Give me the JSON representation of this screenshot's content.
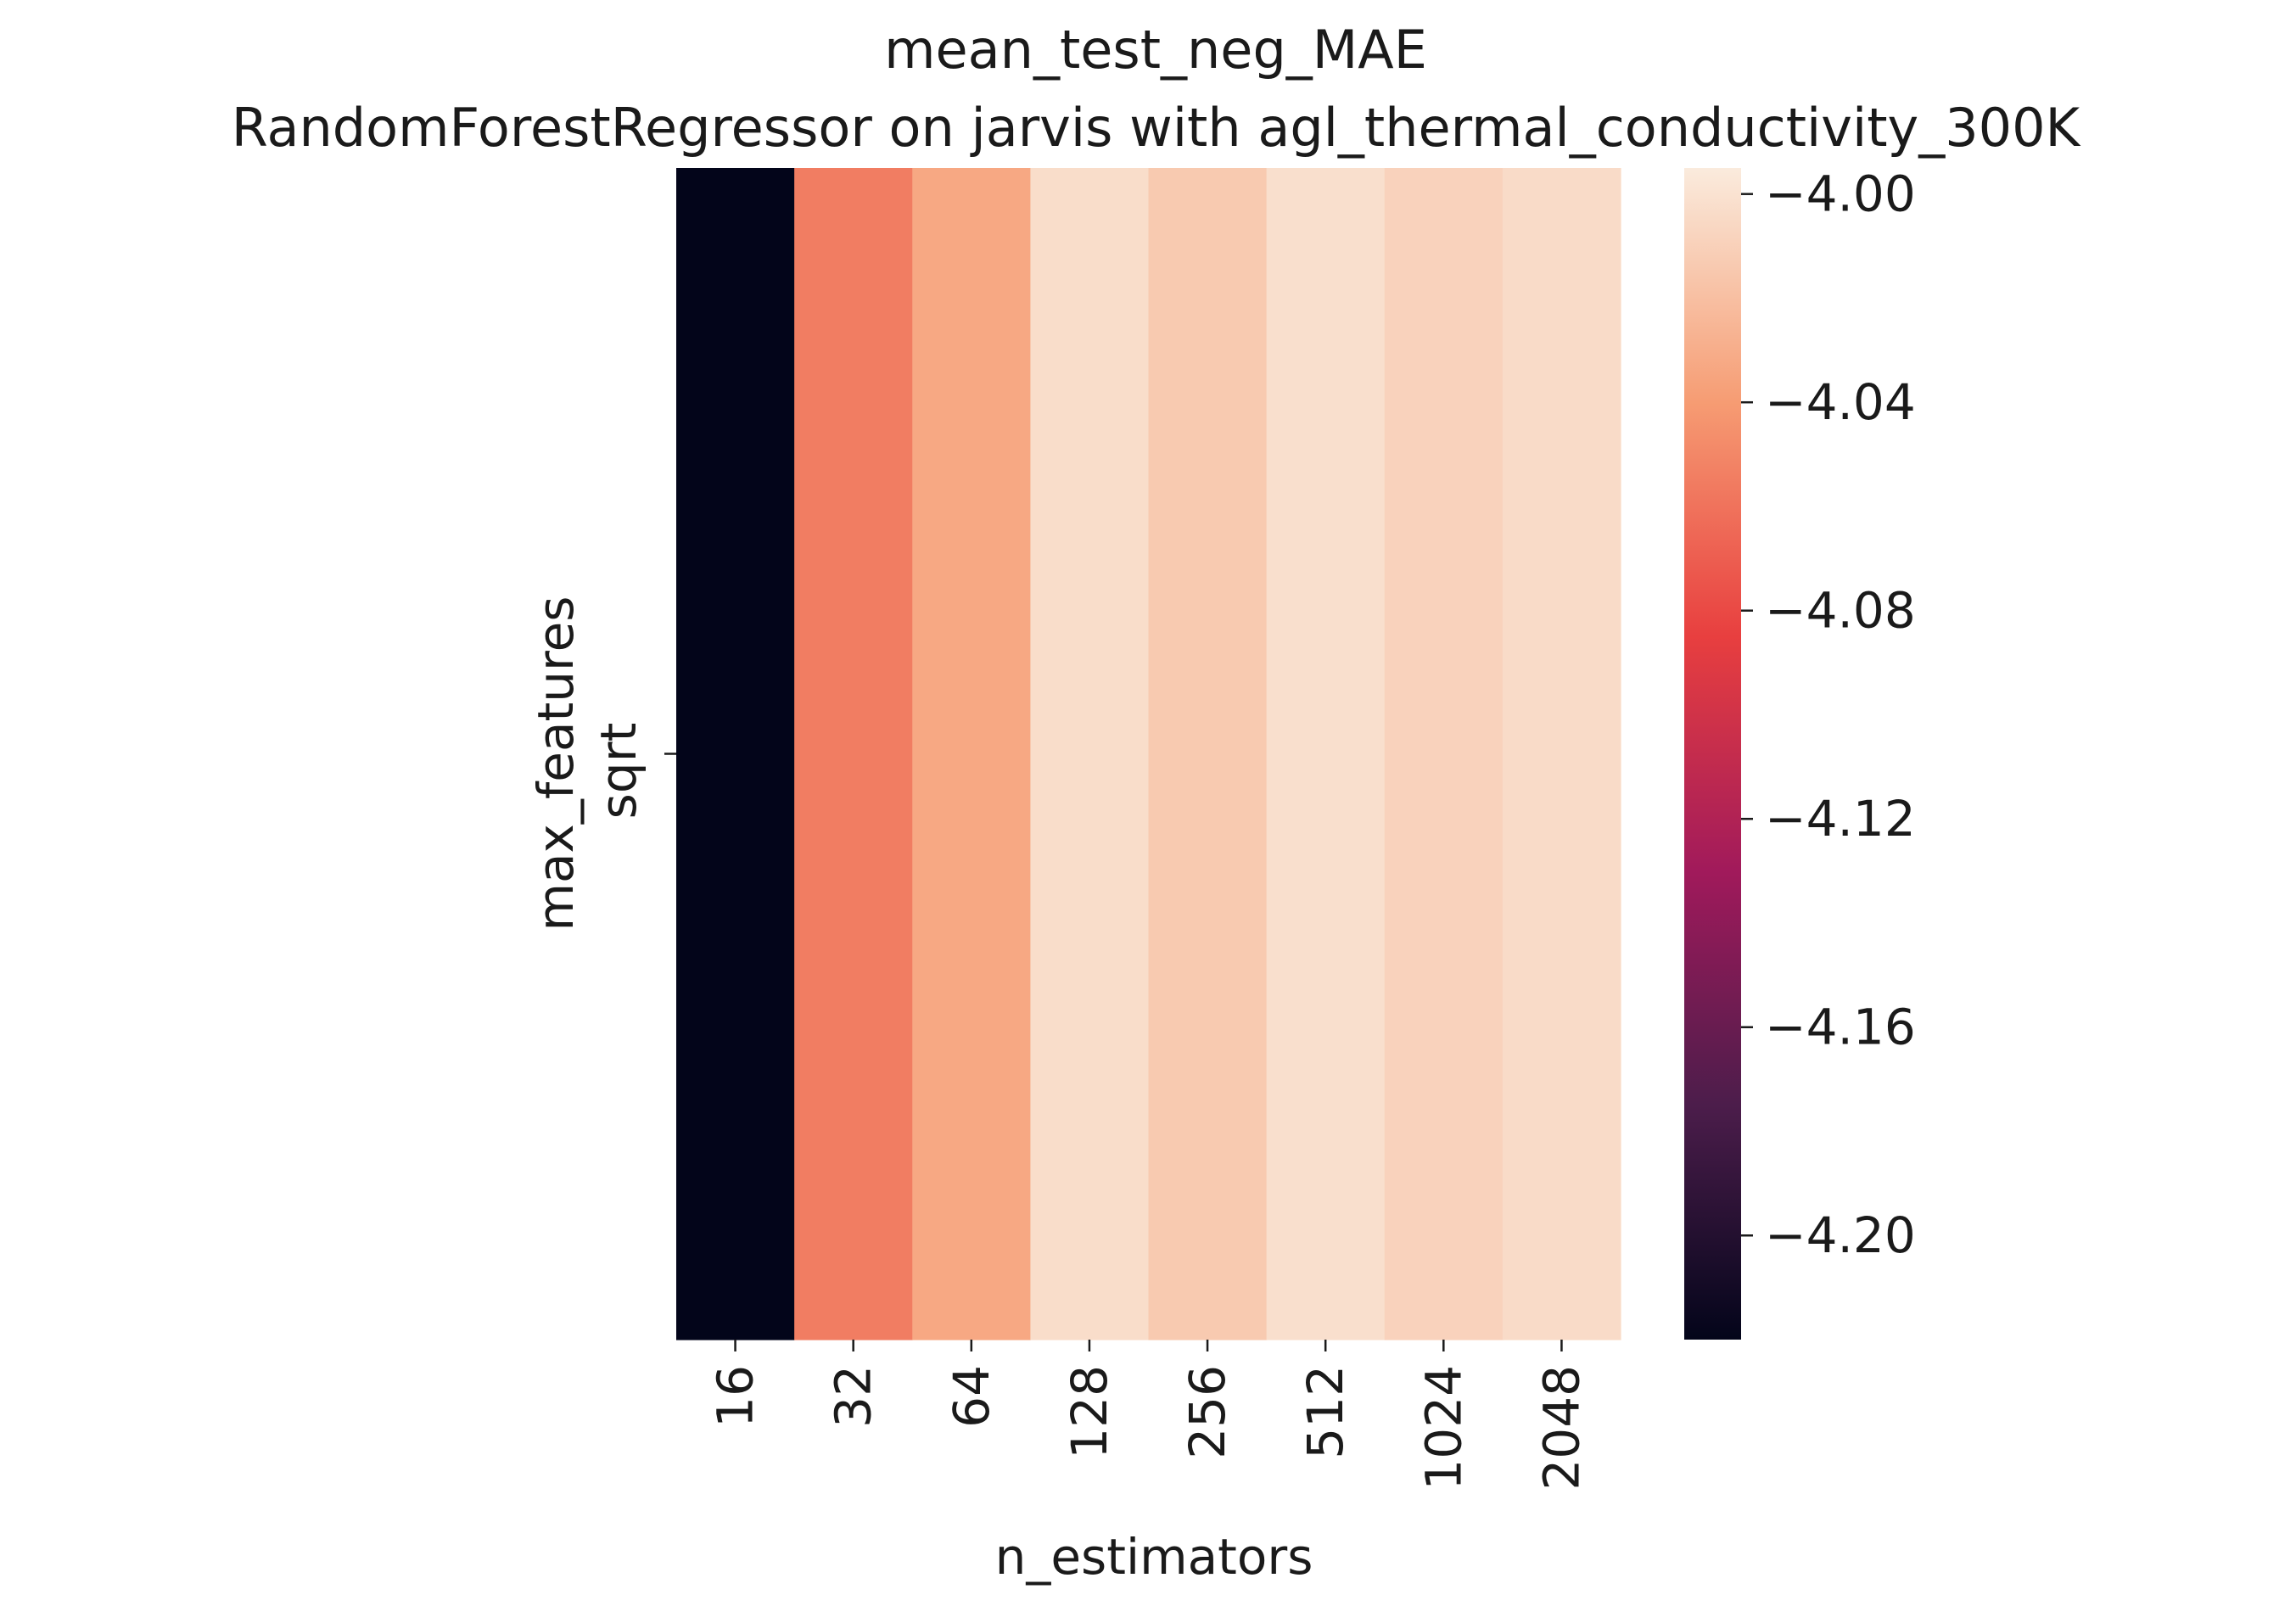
{
  "chart_data": {
    "type": "heatmap",
    "title": "mean_test_neg_MAE",
    "subtitle": "RandomForestRegressor on jarvis with agl_thermal_conductivity_300K",
    "xlabel": "n_estimators",
    "ylabel": "max_features",
    "x_categories": [
      "16",
      "32",
      "64",
      "128",
      "256",
      "512",
      "1024",
      "2048"
    ],
    "y_categories": [
      "sqrt"
    ],
    "values": [
      [
        -4.22,
        -4.055,
        -4.033,
        -4.003,
        -4.014,
        -4.002,
        -4.009,
        -4.004
      ]
    ],
    "colorbar": {
      "vmin": -4.22,
      "vmax": -3.995,
      "ticks": [
        -4.0,
        -4.04,
        -4.08,
        -4.12,
        -4.16,
        -4.2
      ],
      "tick_labels": [
        "−4.00",
        "−4.04",
        "−4.08",
        "−4.12",
        "−4.16",
        "−4.20"
      ],
      "colormap": [
        "#03051a",
        "#4c1d4b",
        "#a11a5b",
        "#e83f3f",
        "#f69c73",
        "#faebdd"
      ],
      "placement": "right"
    },
    "grid": false
  }
}
